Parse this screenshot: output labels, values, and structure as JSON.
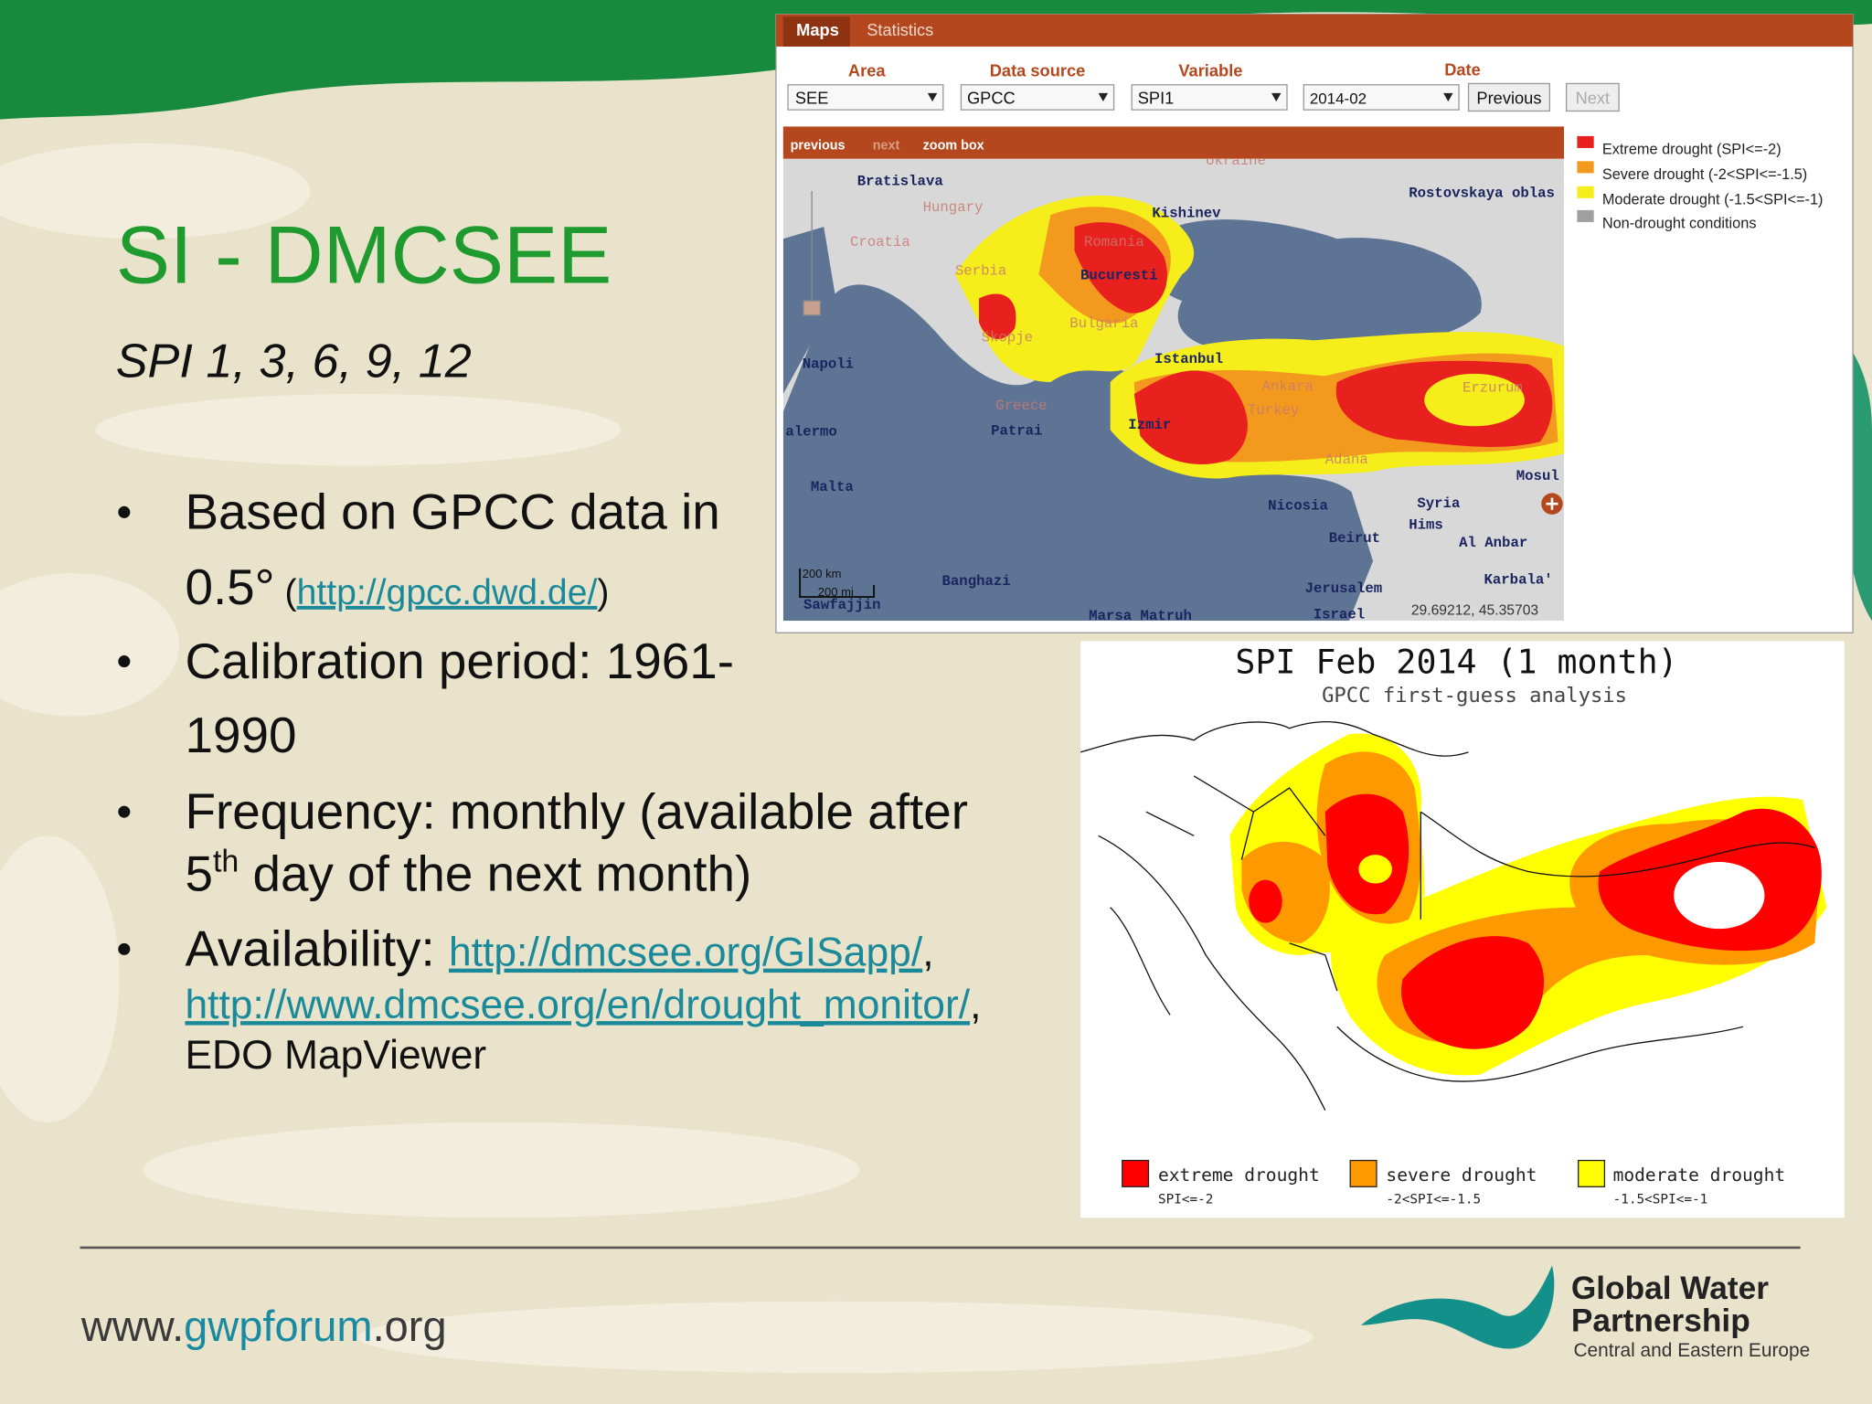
{
  "slide": {
    "title": "SI - DMCSEE",
    "subtitle": "SPI 1, 3, 6, 9, 12",
    "bullets": [
      {
        "lines": [
          [
            "Based on GPCC data in"
          ],
          [
            "0.5°",
            " (",
            "http://gpcc.dwd.de/",
            ")"
          ]
        ]
      },
      {
        "lines": [
          [
            "Calibration period: 1961-"
          ],
          [
            "1990"
          ]
        ]
      },
      {
        "lines": [
          [
            "Frequency: monthly (available after"
          ],
          [
            "5",
            "th",
            " day of the next month)"
          ]
        ]
      },
      {
        "lines": [
          [
            "Availability: ",
            "http://dmcsee.org/GISapp/",
            ","
          ],
          [
            "http://www.dmcsee.org/en/drought_monitor/",
            ","
          ],
          [
            "EDO MapViewer"
          ]
        ]
      }
    ]
  },
  "map_viewer": {
    "tabs": [
      "Maps",
      "Statistics"
    ],
    "fields": [
      {
        "label": "Area",
        "value": "SEE"
      },
      {
        "label": "Data source",
        "value": "GPCC"
      },
      {
        "label": "Variable",
        "value": "SPI1"
      },
      {
        "label": "Date",
        "value": "2014-02"
      }
    ],
    "buttons": [
      "Previous",
      "Next"
    ],
    "toolbar": [
      "previous",
      "next",
      "zoom box"
    ],
    "legend": [
      {
        "label": "Extreme drought (SPI<=-2)",
        "color": "#e8201e"
      },
      {
        "label": "Severe drought (-2<SPI<=-1.5)",
        "color": "#f39a1e"
      },
      {
        "label": "Moderate drought (-1.5<SPI<=-1)",
        "color": "#f5ee1a"
      },
      {
        "label": "Non-drought conditions",
        "color": "#a0a0a0"
      }
    ],
    "places": [
      "Bratislava",
      "Hungary",
      "Croatia",
      "Serbia",
      "Romania",
      "Bucuresti",
      "Kishinev",
      "Ukraine",
      "Rostovskaya oblas",
      "Bulgaria",
      "Skopje",
      "Istanbul",
      "Napoli",
      "alermo",
      "Malta",
      "Greece",
      "Patrai",
      "Izmir",
      "Ankara",
      "Turkey",
      "Erzurum",
      "Adana",
      "Nicosia",
      "Beirut",
      "Syria",
      "Hims",
      "Mosul",
      "Al Anbar",
      "Karbala'",
      "Jerusalem",
      "Israel",
      "Banghazi",
      "Sawfajjin",
      "Marsa Matruh"
    ],
    "scale": [
      "200 km",
      "200 mi"
    ],
    "coordinates": "29.69212, 45.35703"
  },
  "spi_map": {
    "title": "SPI Feb 2014 (1 month)",
    "subtitle": "GPCC first-guess analysis",
    "legend": [
      {
        "label": "extreme drought",
        "range": "SPI<=-2",
        "color": "#ff0000"
      },
      {
        "label": "severe drought",
        "range": "-2<SPI<=-1.5",
        "color": "#ff9900"
      },
      {
        "label": "moderate drought",
        "range": "-1.5<SPI<=-1",
        "color": "#ffff00"
      }
    ]
  },
  "footer": {
    "website": [
      "www.",
      "gwp",
      "forum",
      ".org"
    ],
    "logo": [
      "Global Water",
      "Partnership",
      "Central and Eastern Europe"
    ]
  }
}
